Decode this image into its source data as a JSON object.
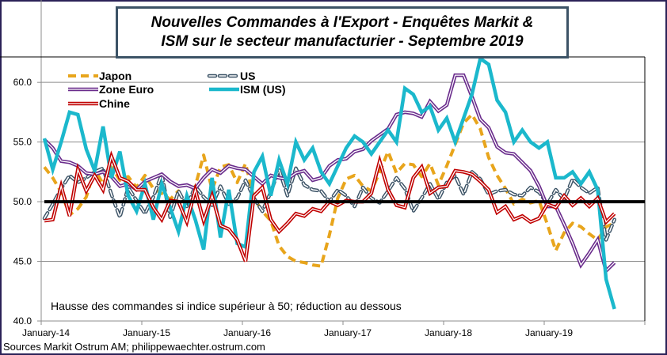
{
  "title": {
    "line1": "Nouvelles Commandes à l'Export - Enquêtes Markit &",
    "line2": "ISM sur le secteur manufacturier - Septembre 2019"
  },
  "source": "Sources Markit Ostrum AM; philippewaechter.ostrum.com",
  "chart_data": {
    "type": "line",
    "title": "Nouvelles Commandes à l'Export - Enquêtes Markit & ISM sur le secteur manufacturier - Septembre 2019",
    "xlabel": "",
    "ylabel": "",
    "x_start": "2014-01",
    "x_end": "2019-09",
    "frequency": "monthly",
    "x_range": [
      "2014-01",
      "2020-01"
    ],
    "ylim": [
      40,
      62
    ],
    "yticks": [
      "40.0",
      "45.0",
      "50.0",
      "55.0",
      "60.0"
    ],
    "ytick_values": [
      40,
      45,
      50,
      55,
      60
    ],
    "xticks": [
      "January-14",
      "January-15",
      "January-16",
      "January-17",
      "January-18",
      "January-19"
    ],
    "xtick_month_index": [
      0,
      12,
      24,
      36,
      48,
      60
    ],
    "grid": "horizontal",
    "reference_line": 50,
    "legend_position": "top-left",
    "annotation": "Hausse des commandes si indice supérieur à 50; réduction au dessous",
    "series": [
      {
        "name": "Japon",
        "style": "dashed",
        "color": "#e8a51c",
        "values": [
          52.9,
          52.0,
          50.8,
          48.9,
          49.4,
          50.4,
          52.7,
          51.5,
          52.9,
          51.8,
          52.1,
          51.2,
          52.2,
          51.1,
          50.7,
          50.2,
          50.9,
          49.5,
          51.3,
          53.9,
          51.0,
          52.9,
          53.1,
          51.6,
          53.2,
          50.3,
          49.2,
          48.4,
          46.3,
          45.4,
          45.0,
          44.9,
          44.7,
          44.6,
          47.2,
          50.3,
          51.9,
          52.2,
          51.3,
          50.9,
          52.5,
          54.2,
          52.4,
          53.2,
          53.1,
          52.1,
          53.2,
          51.4,
          53.0,
          54.8,
          56.6,
          57.3,
          56.1,
          53.7,
          52.2,
          51.1,
          49.8,
          50.2,
          49.9,
          50.1,
          48.1,
          45.9,
          47.4,
          48.2,
          47.9,
          47.3,
          46.8,
          47.9,
          48.2
        ]
      },
      {
        "name": "US",
        "style": "dashed-hollow",
        "color": "#3c5366",
        "values": [
          48.6,
          49.8,
          51.1,
          52.2,
          51.6,
          52.0,
          52.5,
          52.8,
          50.6,
          48.7,
          51.2,
          50.1,
          49.0,
          50.4,
          52.3,
          48.7,
          50.9,
          49.6,
          51.3,
          50.4,
          49.7,
          51.3,
          49.8,
          50.3,
          51.8,
          50.3,
          49.2,
          50.8,
          52.7,
          50.5,
          52.8,
          51.4,
          51.0,
          50.9,
          50.0,
          51.0,
          50.5,
          49.6,
          51.2,
          50.3,
          49.9,
          50.9,
          52.0,
          51.1,
          49.2,
          50.3,
          51.5,
          50.2,
          51.6,
          52.2,
          50.6,
          52.5,
          51.9,
          50.6,
          50.9,
          51.0,
          50.6,
          50.5,
          51.2,
          50.8,
          49.8,
          51.0,
          50.2,
          51.9,
          51.2,
          50.7,
          51.2,
          46.8,
          48.5
        ]
      },
      {
        "name": "Zone Euro",
        "style": "double",
        "color": "#6a2c8c",
        "values": [
          55.2,
          54.5,
          53.4,
          53.3,
          53.0,
          52.4,
          52.3,
          52.5,
          52.1,
          51.3,
          51.5,
          51.0,
          51.7,
          52.0,
          52.3,
          51.7,
          51.3,
          51.4,
          51.1,
          52.0,
          52.7,
          52.4,
          53.0,
          52.8,
          52.7,
          52.1,
          51.5,
          52.2,
          52.0,
          51.9,
          52.4,
          52.6,
          51.8,
          52.0,
          53.0,
          53.5,
          53.6,
          54.2,
          54.4,
          55.1,
          55.6,
          56.1,
          57.3,
          57.5,
          57.4,
          57.1,
          58.4,
          57.6,
          58.1,
          60.6,
          60.6,
          58.8,
          56.9,
          56.2,
          54.6,
          54.1,
          54.0,
          53.3,
          52.6,
          51.3,
          49.6,
          49.6,
          48.1,
          46.5,
          44.7,
          45.7,
          46.8,
          44.2,
          44.9
        ]
      },
      {
        "name": "ISM (US)",
        "style": "solid-thick",
        "color": "#1bb8cc",
        "values": [
          55.3,
          52.7,
          55.0,
          57.5,
          57.3,
          54.4,
          52.6,
          56.3,
          52.0,
          54.2,
          50.5,
          49.2,
          51.5,
          48.5,
          51.5,
          49.5,
          47.5,
          50.5,
          48.5,
          46.0,
          52.0,
          47.0,
          51.0,
          46.5,
          46.2,
          52.5,
          53.8,
          50.5,
          53.5,
          51.5,
          55.0,
          53.5,
          54.5,
          52.5,
          51.5,
          53.0,
          54.5,
          55.5,
          55.0,
          54.0,
          55.0,
          56.0,
          55.0,
          59.5,
          59.0,
          57.5,
          58.0,
          56.0,
          57.0,
          55.0,
          57.0,
          59.0,
          62.0,
          61.5,
          58.5,
          57.5,
          55.0,
          56.0,
          55.0,
          54.5,
          55.0,
          52.0,
          52.0,
          52.5,
          51.5,
          52.5,
          51.0,
          43.5,
          41.0
        ]
      },
      {
        "name": "Chine",
        "style": "double",
        "color": "#c00000",
        "values": [
          48.4,
          48.5,
          51.3,
          48.8,
          52.7,
          50.9,
          52.2,
          51.0,
          53.8,
          52.0,
          51.7,
          51.0,
          51.0,
          49.5,
          48.5,
          50.1,
          50.0,
          48.3,
          51.0,
          48.4,
          50.5,
          48.0,
          47.7,
          46.8,
          45.0,
          50.5,
          51.2,
          48.5,
          47.5,
          48.2,
          49.0,
          48.8,
          49.4,
          49.2,
          50.0,
          49.7,
          50.1,
          50.0,
          50.0,
          50.7,
          53.4,
          51.0,
          49.7,
          49.5,
          52.0,
          52.9,
          50.7,
          51.2,
          51.3,
          52.6,
          52.5,
          52.3,
          51.7,
          51.0,
          49.1,
          49.6,
          48.5,
          48.8,
          48.3,
          48.6,
          49.8,
          49.5,
          50.5,
          49.7,
          50.3,
          49.6,
          50.3,
          48.3,
          49.0
        ]
      }
    ]
  }
}
